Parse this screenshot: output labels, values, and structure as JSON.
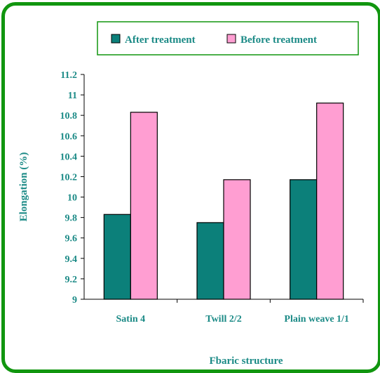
{
  "chart_data": {
    "type": "bar",
    "title": "",
    "xlabel": "Fbaric structure",
    "ylabel": "Elongation (%)",
    "categories": [
      "Satin 4",
      "Twill 2/2",
      "Plain weave 1/1"
    ],
    "series": [
      {
        "name": "After treatment",
        "values": [
          9.83,
          9.75,
          10.17
        ],
        "color": "#0c807a"
      },
      {
        "name": "Before treatment",
        "values": [
          10.83,
          10.17,
          10.92
        ],
        "color": "#ff9ed2"
      }
    ],
    "ylim": [
      9,
      11.2
    ],
    "yticks": [
      "9",
      "9.2",
      "9.4",
      "9.6",
      "9.8",
      "10",
      "10.2",
      "10.4",
      "10.6",
      "10.8",
      "11",
      "11.2"
    ],
    "grid": false,
    "legend_position": "top",
    "colors": {
      "frame": "#11960f",
      "axis": "#000000",
      "text": "#1b8a86",
      "legend_border": "#11960f"
    }
  }
}
